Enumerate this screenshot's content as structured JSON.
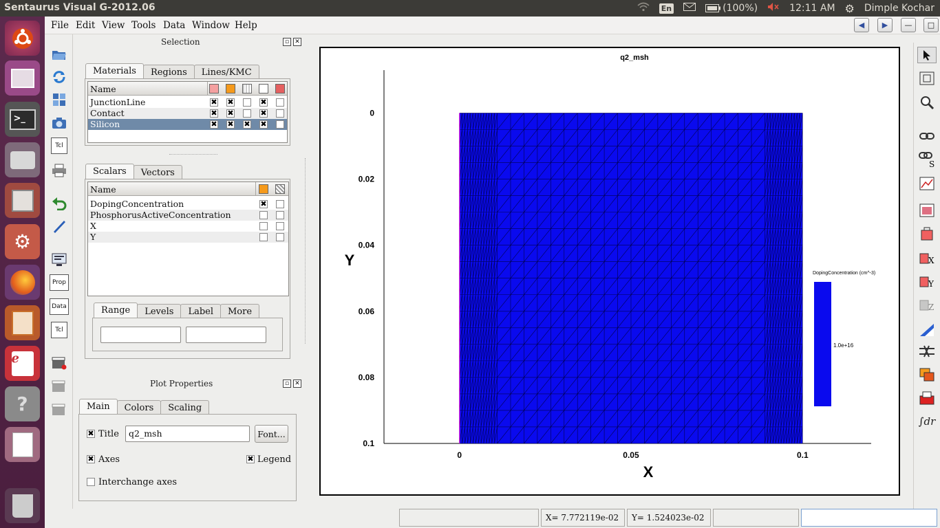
{
  "window": {
    "title": "Sentaurus Visual G-2012.06"
  },
  "systray": {
    "lang": "En",
    "battery": "(100%)",
    "time": "12:11 AM",
    "user": "Dimple Kochar"
  },
  "menu": [
    {
      "label": "File",
      "key": "file"
    },
    {
      "label": "Edit",
      "key": "edit"
    },
    {
      "label": "View",
      "key": "view"
    },
    {
      "label": "Tools",
      "key": "tools"
    },
    {
      "label": "Data",
      "key": "data"
    },
    {
      "label": "Window",
      "key": "window"
    },
    {
      "label": "Help",
      "key": "help"
    }
  ],
  "selection_panel": {
    "title": "Selection",
    "tabs": [
      "Materials",
      "Regions",
      "Lines/KMC"
    ],
    "name_header": "Name",
    "materials": [
      {
        "name": "JunctionLine",
        "checks": [
          true,
          true,
          false,
          true,
          false
        ]
      },
      {
        "name": "Contact",
        "checks": [
          true,
          true,
          false,
          true,
          false
        ]
      },
      {
        "name": "Silicon",
        "checks": [
          true,
          true,
          true,
          true,
          false
        ],
        "selected": true
      }
    ],
    "scalar_tabs": [
      "Scalars",
      "Vectors"
    ],
    "scalars": [
      {
        "name": "DopingConcentration",
        "checks": [
          true,
          false
        ]
      },
      {
        "name": "PhosphorusActiveConcentration",
        "checks": [
          false,
          false
        ]
      },
      {
        "name": "X",
        "checks": [
          false,
          false
        ]
      },
      {
        "name": "Y",
        "checks": [
          false,
          false
        ]
      }
    ],
    "range_tabs": [
      "Range",
      "Levels",
      "Label",
      "More"
    ]
  },
  "plot_properties": {
    "title": "Plot Properties",
    "tabs": [
      "Main",
      "Colors",
      "Scaling"
    ],
    "title_label": "Title",
    "title_value": "q2_msh",
    "font_button": "Font...",
    "axes_label": "Axes",
    "legend_label": "Legend",
    "interchange_label": "Interchange axes"
  },
  "left_toolbar": {
    "tcl": "Tcl",
    "prop": "Prop",
    "data": "Data"
  },
  "chart_data": {
    "type": "heatmap",
    "title": "q2_msh",
    "xlabel": "X",
    "ylabel": "Y",
    "xlim": [
      -0.022,
      0.12
    ],
    "ylim": [
      0.1,
      -0.013
    ],
    "x_ticks": [
      0,
      0.05,
      0.1
    ],
    "x_tick_labels": [
      "0",
      "0.05",
      "0.1"
    ],
    "y_ticks": [
      0,
      0.02,
      0.04,
      0.06,
      0.08,
      0.1
    ],
    "y_tick_labels": [
      "0",
      "0.02",
      "0.04",
      "0.06",
      "0.08",
      "0.1"
    ],
    "region": {
      "x": [
        0,
        0.1
      ],
      "y": [
        0,
        0.1
      ]
    },
    "fill_color": "#0a0aee",
    "mesh_color": "#000033",
    "legend": {
      "title": "DopingConcentration (cm^-3)",
      "value_label": "1.0e+16",
      "color": "#0a0aee"
    }
  },
  "right_toolbar": {
    "integral": "∫dr"
  },
  "status": {
    "x_readout": "X=  7.772119e-02",
    "y_readout": "Y=  1.524023e-02"
  }
}
